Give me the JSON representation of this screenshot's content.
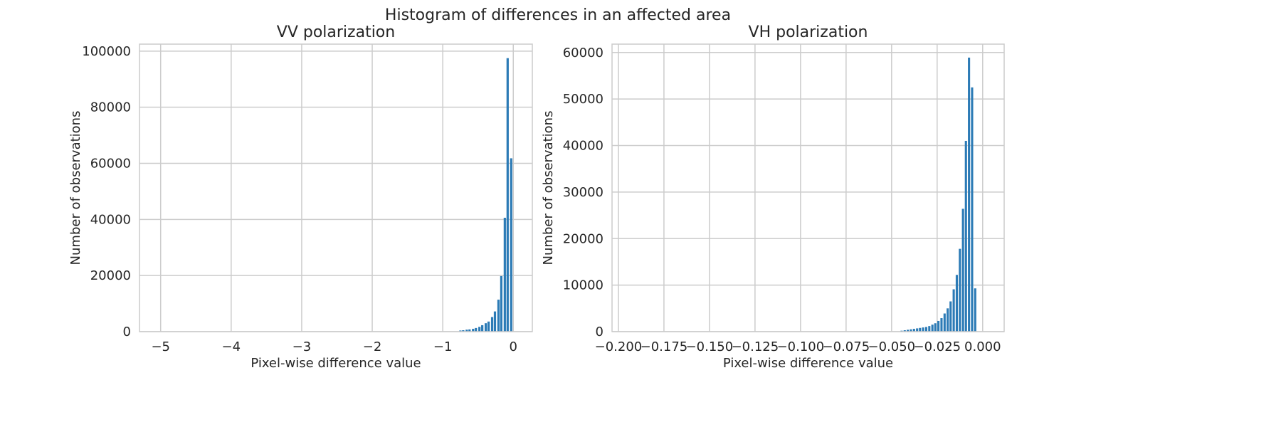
{
  "figure": {
    "suptitle": "Histogram of differences in an affected area"
  },
  "colors": {
    "bar": "#2c7bb6",
    "grid": "#cccccc",
    "text": "#262626"
  },
  "chart_data": [
    {
      "type": "bar",
      "title": "VV polarization",
      "xlabel": "Pixel-wise difference value",
      "ylabel": "Number of observations",
      "xlim": [
        -5.3,
        0.27
      ],
      "ylim": [
        0,
        102500
      ],
      "grid": true,
      "xticks": [
        -5,
        -4,
        -3,
        -2,
        -1,
        0
      ],
      "xtick_labels": [
        "−5",
        "−4",
        "−3",
        "−2",
        "−1",
        "0"
      ],
      "yticks": [
        0,
        20000,
        40000,
        60000,
        80000,
        100000
      ],
      "ytick_labels": [
        "0",
        "20000",
        "40000",
        "60000",
        "80000",
        "100000"
      ],
      "bin_width": 0.0444,
      "bars": [
        {
          "x": -0.75,
          "y": 400
        },
        {
          "x": -0.71,
          "y": 500
        },
        {
          "x": -0.66,
          "y": 700
        },
        {
          "x": -0.62,
          "y": 800
        },
        {
          "x": -0.57,
          "y": 1000
        },
        {
          "x": -0.53,
          "y": 1300
        },
        {
          "x": -0.48,
          "y": 1700
        },
        {
          "x": -0.44,
          "y": 2300
        },
        {
          "x": -0.39,
          "y": 3000
        },
        {
          "x": -0.35,
          "y": 3600
        },
        {
          "x": -0.3,
          "y": 5200
        },
        {
          "x": -0.26,
          "y": 7200
        },
        {
          "x": -0.21,
          "y": 11400
        },
        {
          "x": -0.17,
          "y": 19800
        },
        {
          "x": -0.12,
          "y": 40600
        },
        {
          "x": -0.08,
          "y": 97500
        },
        {
          "x": -0.03,
          "y": 61800
        }
      ]
    },
    {
      "type": "bar",
      "title": "VH polarization",
      "xlabel": "Pixel-wise difference value",
      "ylabel": "Number of observations",
      "xlim": [
        -0.2035,
        0.0118
      ],
      "ylim": [
        0,
        61800
      ],
      "grid": true,
      "xticks": [
        -0.2,
        -0.175,
        -0.15,
        -0.125,
        -0.1,
        -0.075,
        -0.05,
        -0.025,
        0.0
      ],
      "xtick_labels": [
        "−0.200",
        "−0.175",
        "−0.150",
        "−0.125",
        "−0.100",
        "−0.075",
        "−0.050",
        "−0.025",
        "0.000"
      ],
      "yticks": [
        0,
        10000,
        20000,
        30000,
        40000,
        50000,
        60000
      ],
      "ytick_labels": [
        "0",
        "10000",
        "20000",
        "30000",
        "40000",
        "50000",
        "60000"
      ],
      "bin_width": 0.00168,
      "bars": [
        {
          "x": -0.0445,
          "y": 200
        },
        {
          "x": -0.0428,
          "y": 300
        },
        {
          "x": -0.0411,
          "y": 400
        },
        {
          "x": -0.0394,
          "y": 500
        },
        {
          "x": -0.0377,
          "y": 600
        },
        {
          "x": -0.036,
          "y": 700
        },
        {
          "x": -0.0344,
          "y": 800
        },
        {
          "x": -0.0327,
          "y": 900
        },
        {
          "x": -0.031,
          "y": 1000
        },
        {
          "x": -0.0293,
          "y": 1200
        },
        {
          "x": -0.0276,
          "y": 1500
        },
        {
          "x": -0.026,
          "y": 1800
        },
        {
          "x": -0.0243,
          "y": 2300
        },
        {
          "x": -0.0226,
          "y": 2900
        },
        {
          "x": -0.0209,
          "y": 3900
        },
        {
          "x": -0.0192,
          "y": 5000
        },
        {
          "x": -0.0176,
          "y": 6500
        },
        {
          "x": -0.0159,
          "y": 9100
        },
        {
          "x": -0.0142,
          "y": 12200
        },
        {
          "x": -0.0125,
          "y": 17800
        },
        {
          "x": -0.0108,
          "y": 26400
        },
        {
          "x": -0.0092,
          "y": 41000
        },
        {
          "x": -0.0075,
          "y": 58900
        },
        {
          "x": -0.0058,
          "y": 52500
        },
        {
          "x": -0.0041,
          "y": 9300
        }
      ]
    }
  ]
}
